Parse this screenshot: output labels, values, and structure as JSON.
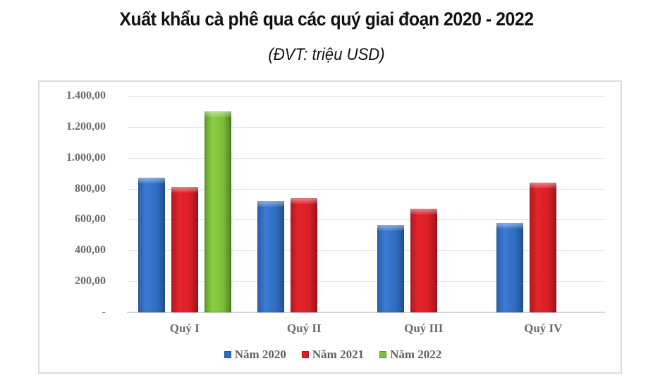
{
  "header": {
    "title": "Xuất khẩu cà phê qua các quý giai đoạn 2020 - 2022",
    "subtitle": "(ĐVT: triệu USD)"
  },
  "axis": {
    "y_ticks": [
      "1.400,00",
      "1.200,00",
      "1.000,00",
      "800,00",
      "600,00",
      "400,00",
      "200,00",
      "-"
    ],
    "y_values": [
      1400,
      1200,
      1000,
      800,
      600,
      400,
      200,
      0
    ],
    "x_ticks": [
      "Quý I",
      "Quý II",
      "Quý III",
      "Quý IV"
    ]
  },
  "legend": [
    {
      "label": "Năm 2020",
      "color": "#2f6cc0"
    },
    {
      "label": "Năm 2021",
      "color": "#d81f27"
    },
    {
      "label": "Năm 2022",
      "color": "#7cbf3a"
    }
  ],
  "chart_data": {
    "type": "bar",
    "title": "Xuất khẩu cà phê qua các quý giai đoạn 2020 - 2022",
    "subtitle": "(ĐVT: triệu USD)",
    "xlabel": "",
    "ylabel": "triệu USD",
    "categories": [
      "Quý I",
      "Quý II",
      "Quý III",
      "Quý IV"
    ],
    "series": [
      {
        "name": "Năm 2020",
        "color": "#2f6cc0",
        "values": [
          870,
          720,
          565,
          580
        ]
      },
      {
        "name": "Năm 2021",
        "color": "#d81f27",
        "values": [
          812,
          738,
          670,
          839
        ]
      },
      {
        "name": "Năm 2022",
        "color": "#7cbf3a",
        "values": [
          1300,
          null,
          null,
          null
        ]
      }
    ],
    "ylim": [
      0,
      1400
    ],
    "y_tick_step": 200,
    "grid": true,
    "legend_position": "bottom"
  }
}
